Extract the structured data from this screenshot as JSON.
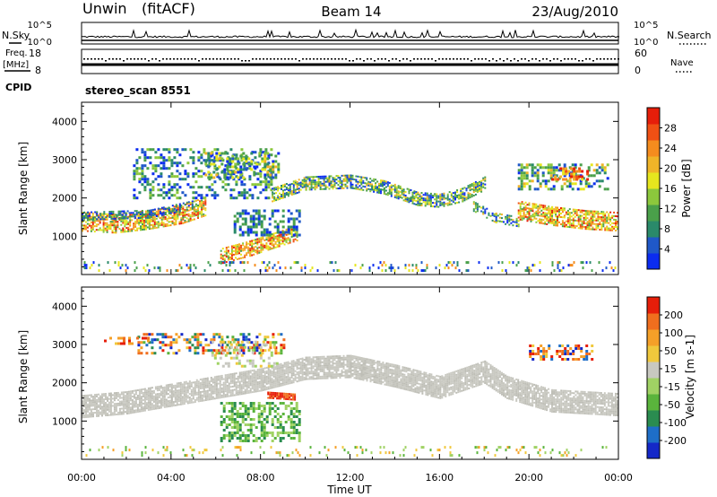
{
  "header": {
    "station": "Unwin",
    "mode": "(fitACF)",
    "beam": "Beam 14",
    "date": "23/Aug/2010"
  },
  "strips": {
    "nsky_label": "N.Sky",
    "nsearch_label": "N.Search",
    "count_tick_top": "10^5",
    "count_tick_bottom": "10^0",
    "freq_label": "Freq.",
    "freq_unit": "[MHz]",
    "freq_tick_top": "18",
    "freq_tick_bottom": "8",
    "nave_label": "Nave",
    "nave_tick_top": "60",
    "nave_tick_bottom": "0",
    "cpid_label": "CPID",
    "cpid_value": "stereo_scan 8551"
  },
  "colors": {
    "range_gate_fill": "#ffffff",
    "ground_scatter": "#c8c8c0",
    "frame": "#000000"
  },
  "chart_data": [
    {
      "type": "heatmap",
      "name": "power",
      "ylabel": "Slant Range [km]",
      "xlabel": "",
      "y_ticks": [
        "4000",
        "3000",
        "2000",
        "1000"
      ],
      "ylim": [
        0,
        4500
      ],
      "xlim": [
        0,
        24
      ],
      "colorbar": {
        "label": "Power [dB]",
        "ticks": [
          "28",
          "24",
          "20",
          "16",
          "12",
          "8",
          "4"
        ],
        "colors": [
          "#0b2cf0",
          "#1f58c8",
          "#2a8a6a",
          "#4aa04a",
          "#8cc83c",
          "#e6e61e",
          "#f0b428",
          "#f58c1e",
          "#f05014",
          "#e61e0a"
        ]
      }
    },
    {
      "type": "heatmap",
      "name": "velocity",
      "ylabel": "Slant Range [km]",
      "xlabel": "Time UT",
      "y_ticks": [
        "4000",
        "3000",
        "2000",
        "1000"
      ],
      "x_ticks": [
        "00:00",
        "04:00",
        "08:00",
        "12:00",
        "16:00",
        "20:00",
        "00:00"
      ],
      "ylim": [
        0,
        4500
      ],
      "xlim": [
        0,
        24
      ],
      "colorbar": {
        "label": "Velocity [m s-1]",
        "ticks": [
          "200",
          "100",
          "50",
          "15",
          "-15",
          "-50",
          "-100",
          "-200"
        ],
        "colors": [
          "#1428c8",
          "#1e6ec8",
          "#2a8c50",
          "#5ab43c",
          "#a0d264",
          "#c8c8c0",
          "#f0c83c",
          "#f5a028",
          "#f06e1e",
          "#e61e0a"
        ]
      }
    }
  ]
}
